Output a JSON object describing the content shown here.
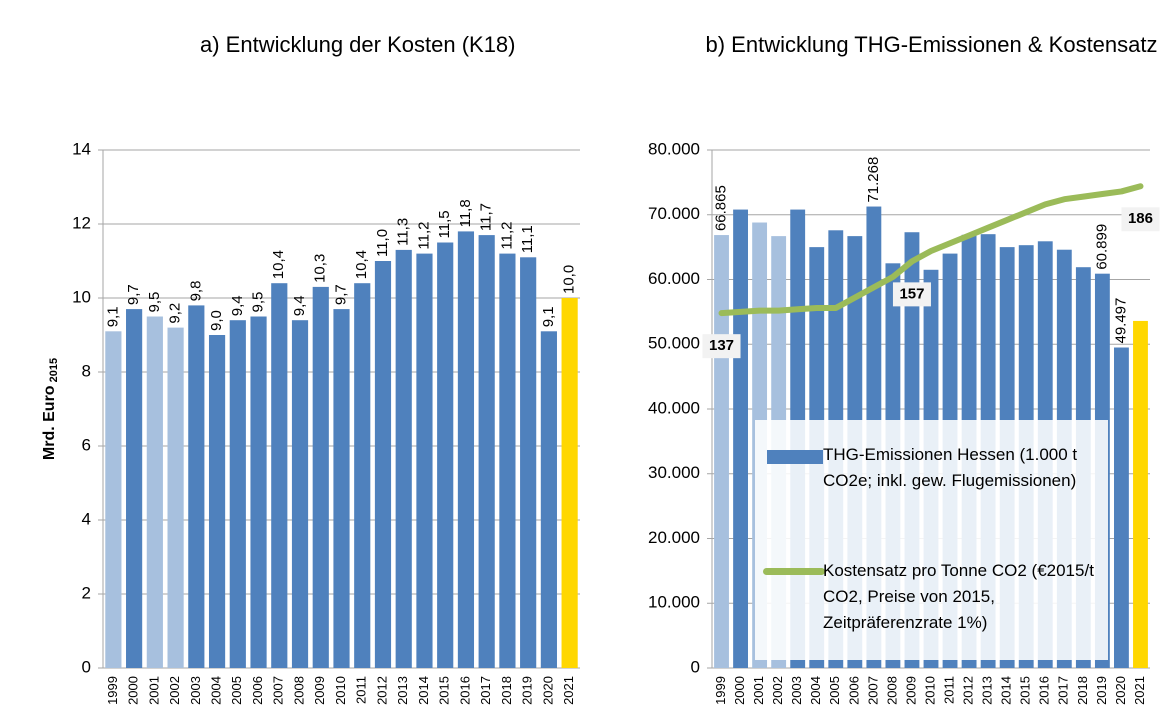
{
  "chart_data": [
    {
      "type": "bar",
      "title": "a) Entwicklung der Kosten (K18)",
      "ylabel": "Mrd. Euro",
      "ylabel_sub": "2015",
      "categories": [
        "1999",
        "2000",
        "2001",
        "2002",
        "2003",
        "2004",
        "2005",
        "2006",
        "2007",
        "2008",
        "2009",
        "2010",
        "2011",
        "2012",
        "2013",
        "2014",
        "2015",
        "2016",
        "2017",
        "2018",
        "2019",
        "2020",
        "2021"
      ],
      "series": [
        {
          "type": "bar",
          "colors": [
            "#a7c0de",
            "#4f81bd",
            "#a7c0de",
            "#a7c0de",
            "#4f81bd",
            "#4f81bd",
            "#4f81bd",
            "#4f81bd",
            "#4f81bd",
            "#4f81bd",
            "#4f81bd",
            "#4f81bd",
            "#4f81bd",
            "#4f81bd",
            "#4f81bd",
            "#4f81bd",
            "#4f81bd",
            "#4f81bd",
            "#4f81bd",
            "#4f81bd",
            "#4f81bd",
            "#4f81bd",
            "#ffd700"
          ],
          "values": [
            9.1,
            9.7,
            9.5,
            9.2,
            9.8,
            9.0,
            9.4,
            9.5,
            10.4,
            9.4,
            10.3,
            9.7,
            10.4,
            11.0,
            11.3,
            11.2,
            11.5,
            11.8,
            11.7,
            11.2,
            11.1,
            9.1,
            10.0
          ],
          "value_labels": [
            "9,1",
            "9,7",
            "9,5",
            "9,2",
            "9,8",
            "9,0",
            "9,4",
            "9,5",
            "10,4",
            "9,4",
            "10,3",
            "9,7",
            "10,4",
            "11,0",
            "11,3",
            "11,2",
            "11,5",
            "11,8",
            "11,7",
            "11,2",
            "11,1",
            "9,1",
            "10,0"
          ]
        }
      ],
      "ylim": [
        0,
        14
      ],
      "yticks": [
        0,
        2,
        4,
        6,
        8,
        10,
        12,
        14
      ],
      "grid": true
    },
    {
      "type": "bar_line",
      "title": "b) Entwicklung THG-Emissionen & Kostensatz",
      "categories": [
        "1999",
        "2000",
        "2001",
        "2002",
        "2003",
        "2004",
        "2005",
        "2006",
        "2007",
        "2008",
        "2009",
        "2010",
        "2011",
        "2012",
        "2013",
        "2014",
        "2015",
        "2016",
        "2017",
        "2018",
        "2019",
        "2020",
        "2021"
      ],
      "series": [
        {
          "type": "bar",
          "name": "THG-Emissionen Hessen (1.000 t CO2e; inkl. gew. Flugemissionen)",
          "color": "#4f81bd",
          "colors": [
            "#a7c0de",
            "#4f81bd",
            "#a7c0de",
            "#a7c0de",
            "#4f81bd",
            "#4f81bd",
            "#4f81bd",
            "#4f81bd",
            "#4f81bd",
            "#4f81bd",
            "#4f81bd",
            "#4f81bd",
            "#4f81bd",
            "#4f81bd",
            "#4f81bd",
            "#4f81bd",
            "#4f81bd",
            "#4f81bd",
            "#4f81bd",
            "#4f81bd",
            "#4f81bd",
            "#4f81bd",
            "#ffd700"
          ],
          "values": [
            66865,
            70800,
            68800,
            66700,
            70800,
            65000,
            67600,
            66700,
            71268,
            62500,
            67300,
            61500,
            64000,
            66900,
            67000,
            65000,
            65300,
            65900,
            64600,
            61900,
            60899,
            49497,
            53600
          ],
          "value_labels": [
            "66.865",
            null,
            null,
            null,
            null,
            null,
            null,
            null,
            "71.268",
            null,
            null,
            null,
            null,
            null,
            null,
            null,
            null,
            null,
            null,
            null,
            "60.899",
            "49.497",
            null
          ]
        },
        {
          "type": "line",
          "name": "Kostensatz pro Tonne CO2 (€2015/t CO2, Preise von 2015, Zeitpräferenzrate 1%)",
          "color": "#9bbb59",
          "axis": "y2",
          "values": [
            137,
            137.5,
            138,
            138,
            138.5,
            139,
            139,
            143,
            147,
            151,
            157,
            161,
            164,
            167,
            170,
            173,
            176,
            179,
            181,
            182,
            183,
            184,
            186
          ],
          "value_labels": [
            "137",
            null,
            null,
            null,
            null,
            null,
            null,
            null,
            null,
            null,
            "157",
            null,
            null,
            null,
            null,
            null,
            null,
            null,
            null,
            null,
            null,
            null,
            "186"
          ]
        }
      ],
      "ylim": [
        0,
        80000
      ],
      "yticks": [
        0,
        {
          "value": 10000,
          "label": "10.000"
        },
        {
          "value": 20000,
          "label": "20.000"
        },
        {
          "value": 30000,
          "label": "30.000"
        },
        {
          "value": 40000,
          "label": "40.000"
        },
        {
          "value": 50000,
          "label": "50.000"
        },
        {
          "value": 60000,
          "label": "60.000"
        },
        {
          "value": 70000,
          "label": "70.000"
        },
        {
          "value": 80000,
          "label": "80.000"
        }
      ],
      "y2lim": [
        0,
        200
      ],
      "grid": true
    }
  ]
}
